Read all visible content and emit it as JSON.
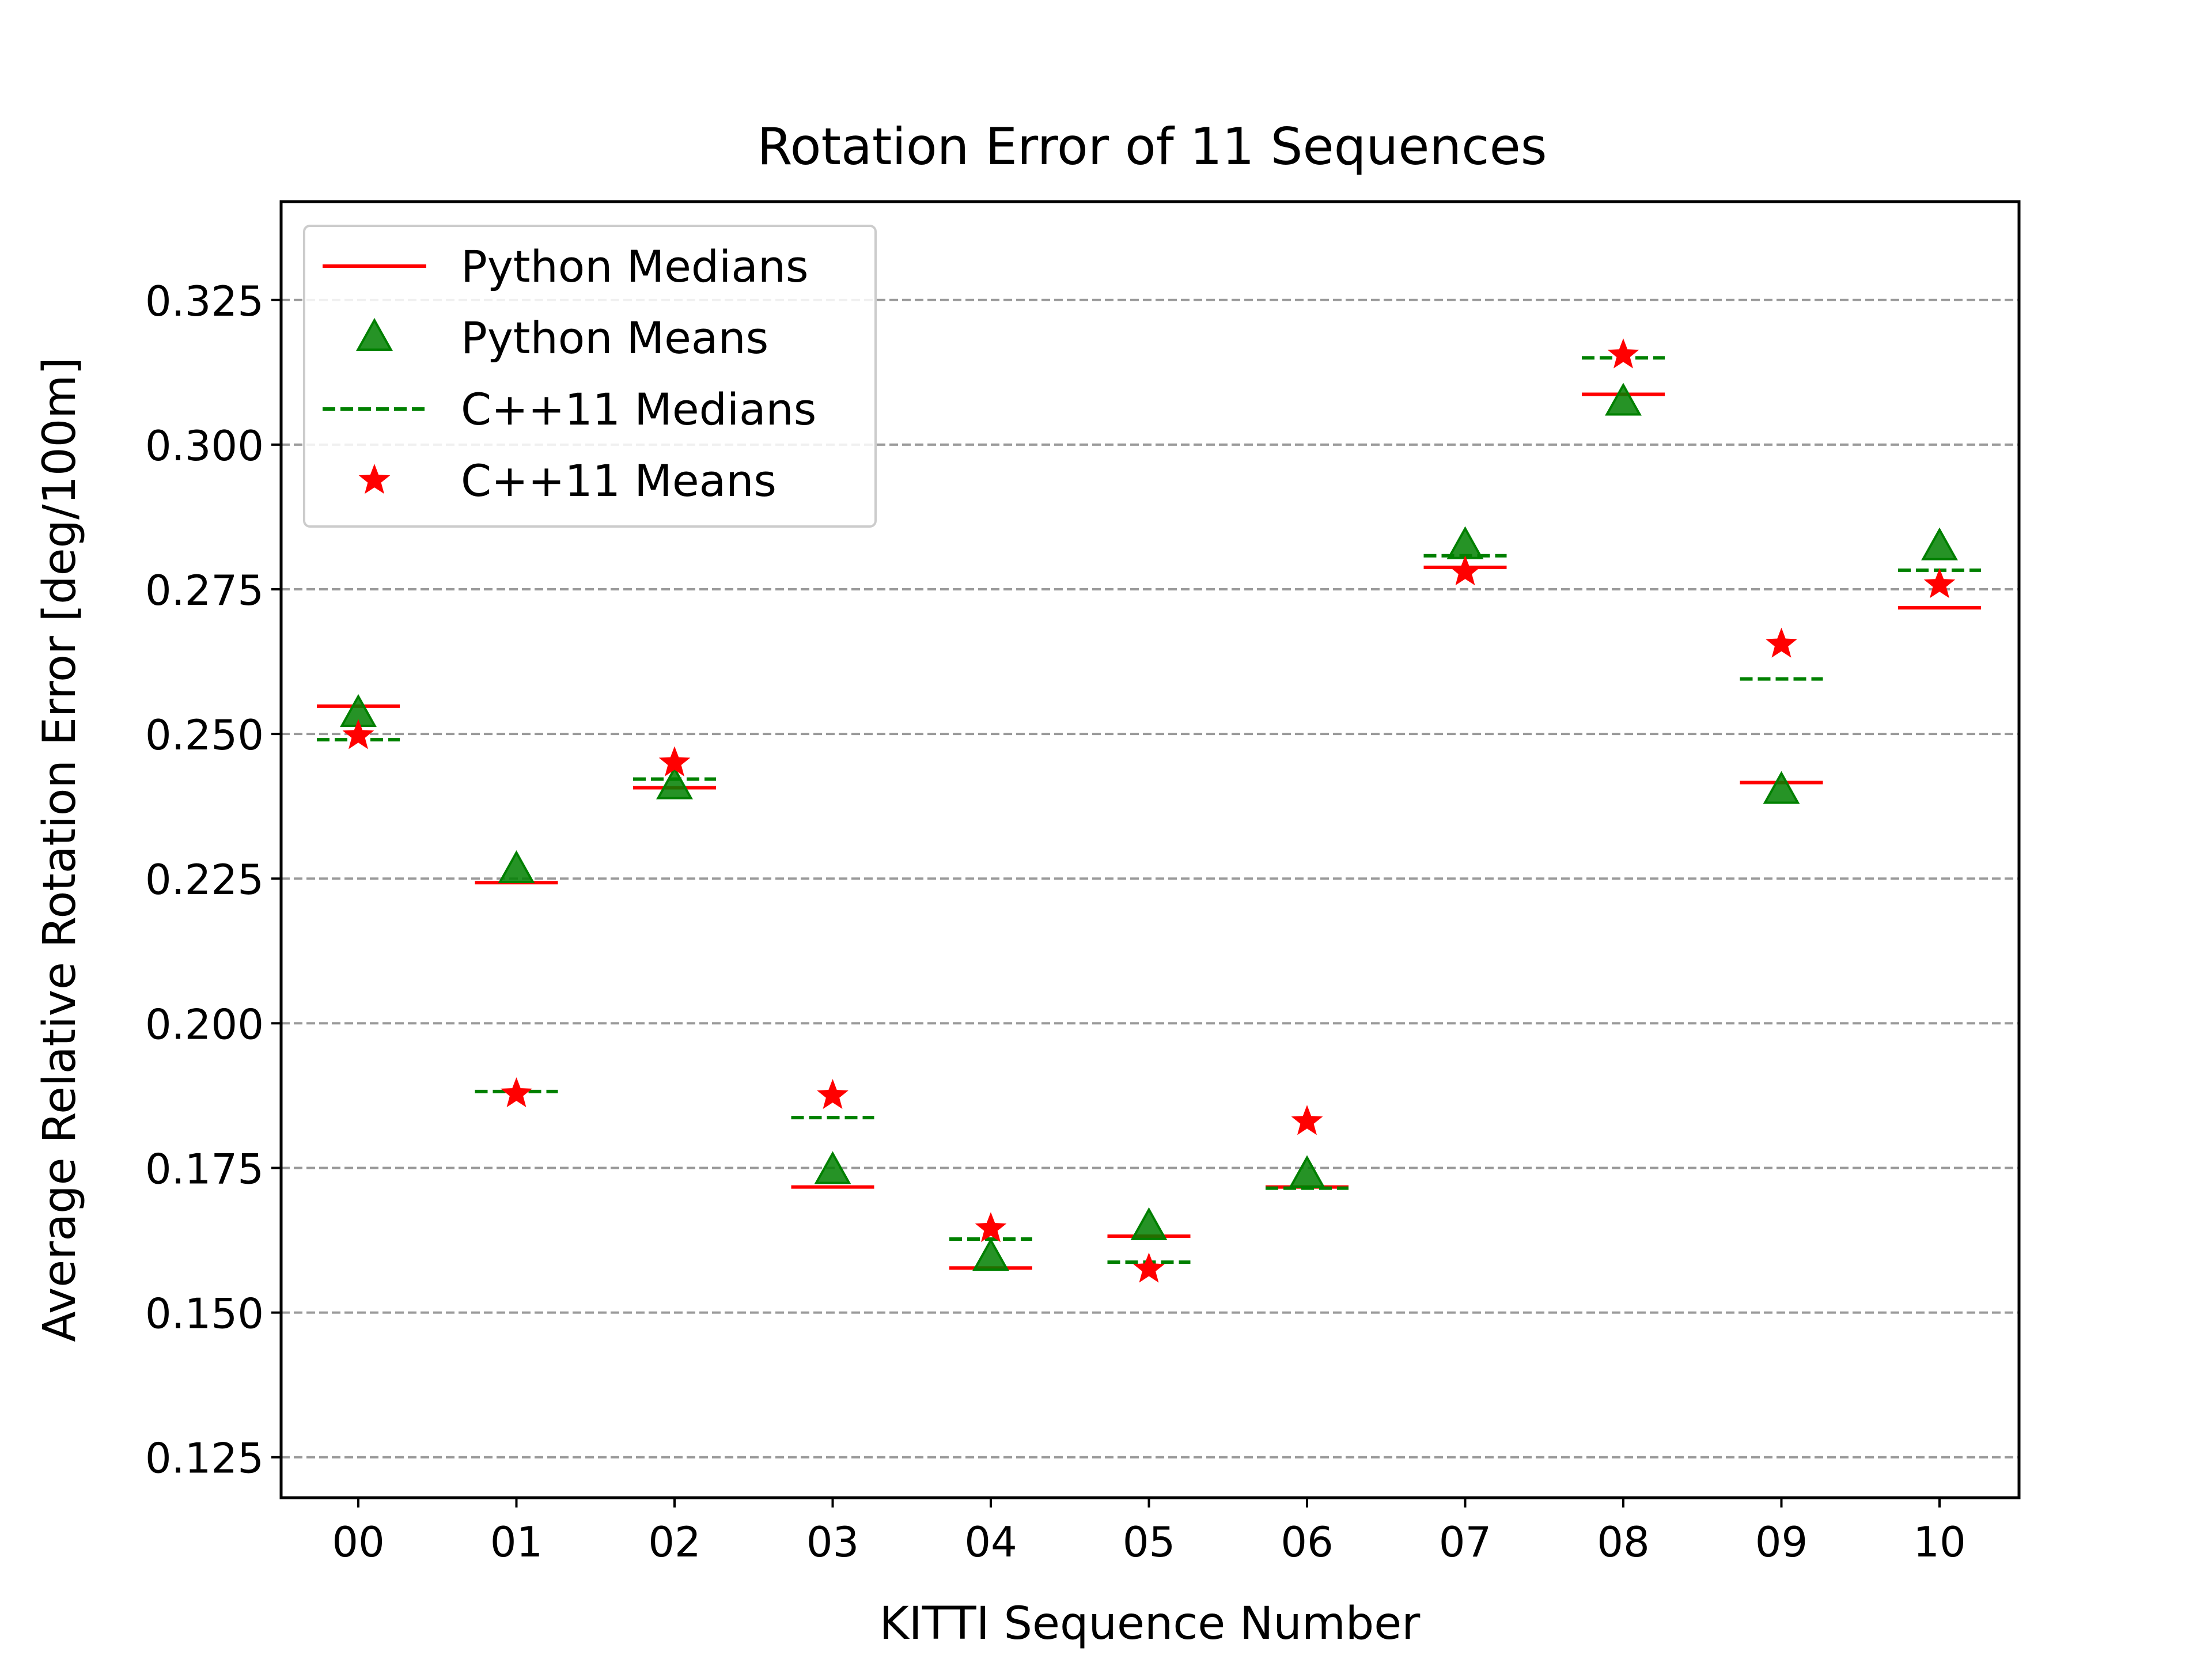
{
  "chart_data": {
    "type": "scatter",
    "title": "Rotation Error of 11 Sequences",
    "xlabel": "KITTI Sequence Number",
    "ylabel": "Average Relative Rotation Error [deg/100m]",
    "categories": [
      "00",
      "01",
      "02",
      "03",
      "04",
      "05",
      "06",
      "07",
      "08",
      "09",
      "10"
    ],
    "ylim": [
      0.118,
      0.342
    ],
    "yticks": [
      0.125,
      0.15,
      0.175,
      0.2,
      0.225,
      0.25,
      0.275,
      0.3,
      0.325
    ],
    "ytick_labels": [
      "0.125",
      "0.150",
      "0.175",
      "0.200",
      "0.225",
      "0.250",
      "0.275",
      "0.300",
      "0.325"
    ],
    "grid": "horizontal dashed",
    "legend_position": "top-left",
    "series": [
      {
        "name": "Python Medians",
        "marker": "solid-line",
        "color": "#ff0000",
        "values": [
          0.2548,
          0.2243,
          0.2407,
          0.1717,
          0.1577,
          0.1632,
          0.1717,
          0.2788,
          0.3087,
          0.2416,
          0.2718
        ]
      },
      {
        "name": "Python Means",
        "marker": "triangle",
        "color": "#008000",
        "values": [
          0.2535,
          0.2265,
          0.241,
          0.1745,
          0.1595,
          0.1648,
          0.1738,
          0.2825,
          0.3073,
          0.2402,
          0.2823
        ]
      },
      {
        "name": "C++11 Medians",
        "marker": "dashed-line",
        "color": "#008000",
        "values": [
          0.249,
          0.1882,
          0.2422,
          0.1837,
          0.1627,
          0.1587,
          0.1715,
          0.2808,
          0.315,
          0.2595,
          0.2783
        ]
      },
      {
        "name": "C++11 Means",
        "marker": "star",
        "color": "#ff0000",
        "values": [
          0.2497,
          0.1878,
          0.245,
          0.1875,
          0.1645,
          0.1575,
          0.183,
          0.278,
          0.3155,
          0.2655,
          0.2758
        ]
      }
    ]
  }
}
